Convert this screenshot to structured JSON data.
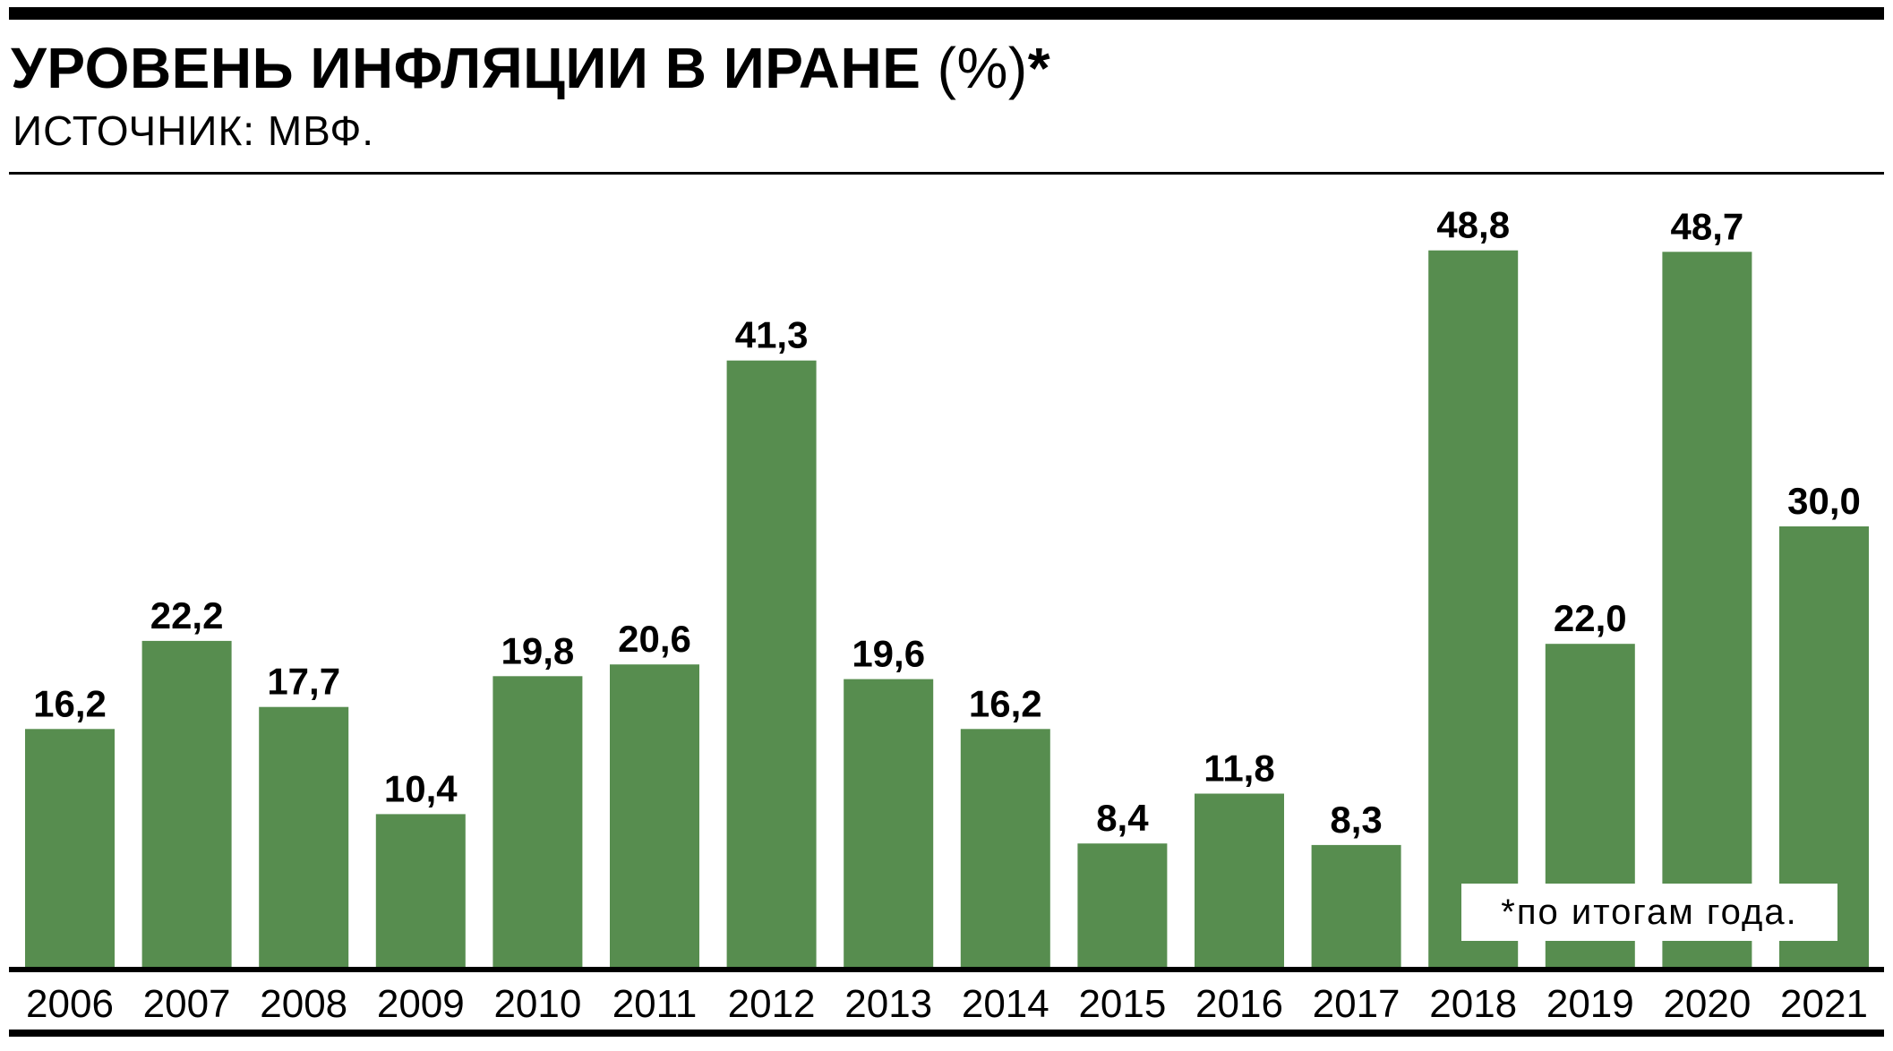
{
  "title": {
    "main": "УРОВЕНЬ ИНФЛЯЦИИ В ИРАНЕ",
    "unit": " (%)",
    "marker": "*"
  },
  "subtitle": "ИСТОЧНИК: МВФ.",
  "footnote": "*по итогам года.",
  "colors": {
    "bar": "#578d4f",
    "axis": "#000000",
    "text": "#000000"
  },
  "chart_data": {
    "type": "bar",
    "categories": [
      "2006",
      "2007",
      "2008",
      "2009",
      "2010",
      "2011",
      "2012",
      "2013",
      "2014",
      "2015",
      "2016",
      "2017",
      "2018",
      "2019",
      "2020",
      "2021"
    ],
    "values": [
      16.2,
      22.2,
      17.7,
      10.4,
      19.8,
      20.6,
      41.3,
      19.6,
      16.2,
      8.4,
      11.8,
      8.3,
      48.8,
      22.0,
      48.7,
      30.0
    ],
    "value_labels": [
      "16,2",
      "22,2",
      "17,7",
      "10,4",
      "19,8",
      "20,6",
      "41,3",
      "19,6",
      "16,2",
      "8,4",
      "11,8",
      "8,3",
      "48,8",
      "22,0",
      "48,7",
      "30,0"
    ],
    "title": "УРОВЕНЬ ИНФЛЯЦИИ В ИРАНЕ (%)*",
    "subtitle": "ИСТОЧНИК: МВФ.",
    "xlabel": "",
    "ylabel": "",
    "ylim": [
      0,
      50
    ],
    "grid": false,
    "legend": "none"
  }
}
